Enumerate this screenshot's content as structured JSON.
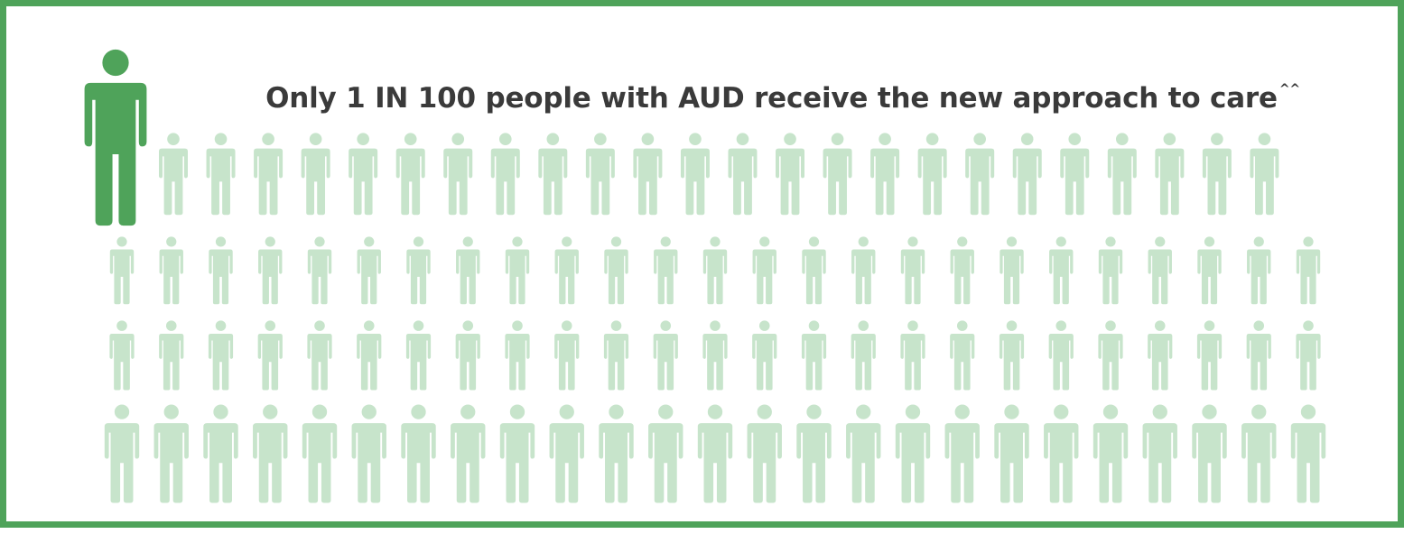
{
  "headline": {
    "text": "Only 1 IN 100 people with AUD receive the new approach to care",
    "marker": "^^"
  },
  "colors": {
    "border": "#4fa35a",
    "highlight_figure": "#4fa35a",
    "other_figures": "#c7e4cb",
    "text": "#3a3a3a"
  },
  "icon": "person-icon",
  "chart_data": {
    "type": "pictogram",
    "title": "Only 1 IN 100 people with AUD receive the new approach to care",
    "total": 100,
    "highlighted": 1,
    "rows": 4,
    "per_row": 25
  }
}
